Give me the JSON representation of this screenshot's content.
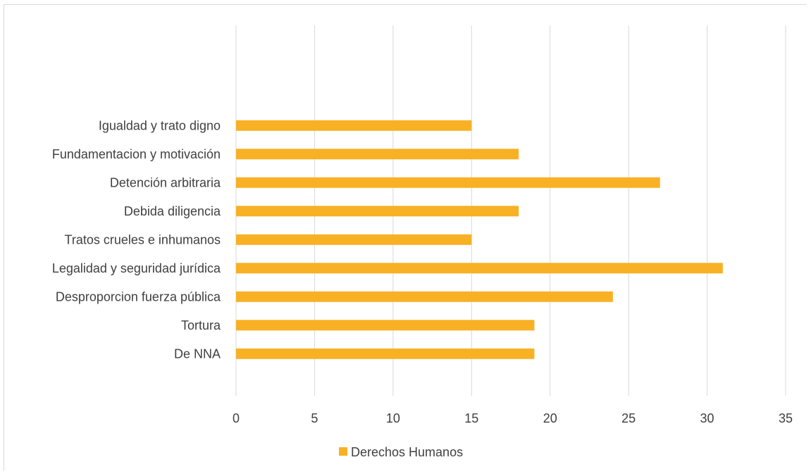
{
  "chart_data": {
    "type": "bar",
    "orientation": "horizontal",
    "categories": [
      "Igualdad y trato digno",
      "Fundamentacion y motivación",
      "Detención arbitraria",
      "Debida diligencia",
      "Tratos crueles e inhumanos",
      "Legalidad y seguridad jurídica",
      "Desproporcion fuerza pública",
      "Tortura",
      "De NNA"
    ],
    "series": [
      {
        "name": "Derechos Humanos",
        "values": [
          15,
          18,
          27,
          18,
          15,
          31,
          24,
          19,
          19
        ],
        "color": "#f8b125"
      }
    ],
    "xlim": [
      0,
      35
    ],
    "xticks": [
      "0",
      "5",
      "10",
      "15",
      "20",
      "25",
      "30",
      "35"
    ],
    "title": "",
    "xlabel": "",
    "ylabel": "",
    "grid": "vertical",
    "legend_position": "bottom",
    "gridline_color": "#d9d9d9",
    "text_color": "#404040"
  }
}
